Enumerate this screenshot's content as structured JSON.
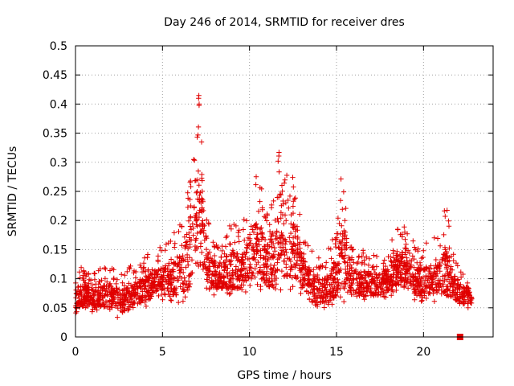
{
  "chart_data": {
    "type": "scatter",
    "title": "Day 246 of 2014, SRMTID for receiver dres",
    "xlabel": "GPS time / hours",
    "ylabel": "SRMTID / TECUs",
    "xlim": [
      0,
      24
    ],
    "ylim": [
      0,
      0.5
    ],
    "xticks": [
      0,
      5,
      10,
      15,
      20
    ],
    "xtick_labels": [
      "0",
      "5",
      "10",
      "15",
      "20"
    ],
    "yticks": [
      0,
      0.05,
      0.1,
      0.15,
      0.2,
      0.25,
      0.3,
      0.35,
      0.4,
      0.45,
      0.5
    ],
    "ytick_labels": [
      "0",
      "0.05",
      "0.1",
      "0.15",
      "0.2",
      "0.25",
      "0.3",
      "0.35",
      "0.4",
      "0.45",
      "0.5"
    ],
    "grid": true,
    "series": [
      {
        "name": "SRMTID",
        "marker": "plus",
        "color": "#e00000",
        "envelope": {
          "x": [
            0,
            0.5,
            1,
            1.5,
            2,
            2.5,
            3,
            3.5,
            4,
            4.5,
            5,
            5.5,
            6,
            6.5,
            6.8,
            7,
            7.3,
            7.6,
            8,
            8.5,
            9,
            9.5,
            10,
            10.5,
            11,
            11.5,
            11.8,
            12.2,
            12.6,
            13,
            13.5,
            14,
            14.5,
            15,
            15.3,
            15.7,
            16,
            16.5,
            17,
            17.5,
            18,
            18.5,
            19,
            19.5,
            20,
            20.5,
            21,
            21.3,
            21.6,
            22,
            22.5,
            22.8
          ],
          "low": [
            0.04,
            0.045,
            0.04,
            0.04,
            0.04,
            0.03,
            0.035,
            0.045,
            0.05,
            0.06,
            0.06,
            0.055,
            0.06,
            0.06,
            0.07,
            0.08,
            0.09,
            0.08,
            0.07,
            0.07,
            0.07,
            0.07,
            0.08,
            0.08,
            0.07,
            0.06,
            0.07,
            0.08,
            0.08,
            0.07,
            0.05,
            0.04,
            0.05,
            0.05,
            0.06,
            0.06,
            0.06,
            0.06,
            0.06,
            0.06,
            0.07,
            0.07,
            0.07,
            0.06,
            0.06,
            0.06,
            0.06,
            0.05,
            0.06,
            0.05,
            0.05,
            0.05
          ],
          "high": [
            0.12,
            0.12,
            0.11,
            0.12,
            0.12,
            0.11,
            0.12,
            0.13,
            0.14,
            0.15,
            0.16,
            0.17,
            0.2,
            0.26,
            0.33,
            0.44,
            0.36,
            0.2,
            0.17,
            0.17,
            0.2,
            0.18,
            0.24,
            0.29,
            0.22,
            0.25,
            0.41,
            0.27,
            0.28,
            0.19,
            0.16,
            0.14,
            0.15,
            0.19,
            0.29,
            0.2,
            0.15,
            0.15,
            0.15,
            0.14,
            0.15,
            0.2,
            0.19,
            0.16,
            0.16,
            0.17,
            0.18,
            0.24,
            0.16,
            0.12,
            0.11,
            0.1
          ]
        },
        "approx_point_count": 2600,
        "x_range": [
          0,
          22.8
        ]
      },
      {
        "name": "marker",
        "marker": "square",
        "color": "#e00000",
        "points": [
          {
            "x": 22.1,
            "y": 0
          }
        ]
      }
    ]
  }
}
